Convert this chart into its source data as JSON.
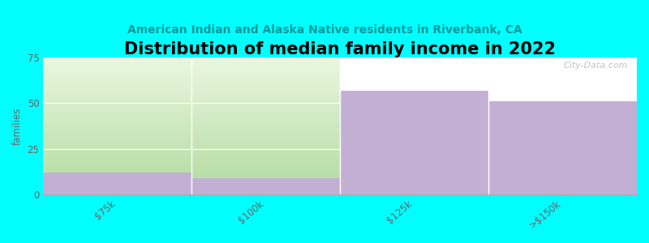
{
  "title": "Distribution of median family income in 2022",
  "subtitle": "American Indian and Alaska Native residents in Riverbank, CA",
  "categories": [
    "$75k",
    "$100k",
    "$125k",
    ">$150k"
  ],
  "values": [
    12,
    9,
    57,
    51
  ],
  "bar_color": "#c4afd4",
  "bg_color": "#00ffff",
  "plot_bg_color": "#ffffff",
  "green_top_color": "#e8f5e0",
  "green_bottom_color": "#c8e8b8",
  "ylabel": "families",
  "ylim": [
    0,
    75
  ],
  "yticks": [
    0,
    25,
    50,
    75
  ],
  "title_fontsize": 15,
  "subtitle_fontsize": 10,
  "subtitle_color": "#009999",
  "watermark": "City-Data.com"
}
